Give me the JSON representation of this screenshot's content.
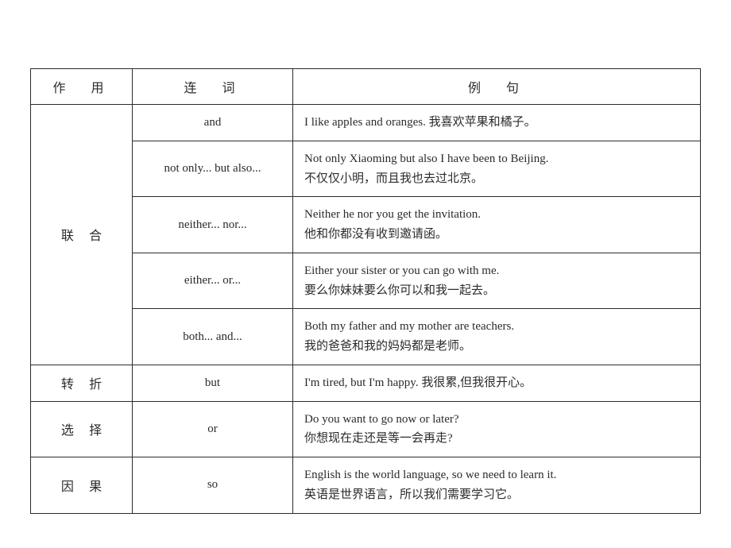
{
  "headers": {
    "col1": "作　用",
    "col2": "连　词",
    "col3": "例　句"
  },
  "categories": [
    {
      "name": "联合",
      "rows": [
        {
          "conj": "and",
          "ex": "I like apples and oranges. 我喜欢苹果和橘子。"
        },
        {
          "conj": "not only... but also...",
          "ex": "Not only Xiaoming but also I have been to Beijing.\n不仅仅小明，而且我也去过北京。"
        },
        {
          "conj": "neither... nor...",
          "ex": "Neither he nor you get the invitation.\n他和你都没有收到邀请函。"
        },
        {
          "conj": "either... or...",
          "ex": "Either your sister or you can go with me.\n要么你妹妹要么你可以和我一起去。"
        },
        {
          "conj": "both... and...",
          "ex": "Both my father and my mother are teachers.\n我的爸爸和我的妈妈都是老师。"
        }
      ]
    },
    {
      "name": "转折",
      "rows": [
        {
          "conj": "but",
          "ex": "I'm tired, but I'm happy. 我很累,但我很开心。"
        }
      ]
    },
    {
      "name": "选择",
      "rows": [
        {
          "conj": "or",
          "ex": "Do you want to go now or later?\n你想现在走还是等一会再走?"
        }
      ]
    },
    {
      "name": "因果",
      "rows": [
        {
          "conj": "so",
          "ex": "English is the world language, so we need to learn it.\n英语是世界语言，所以我们需要学习它。"
        }
      ]
    }
  ]
}
